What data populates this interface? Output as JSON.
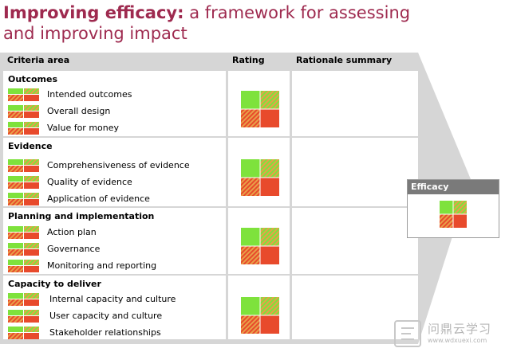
{
  "title": {
    "bold": "Improving efficacy:",
    "rest": " a framework for assessing",
    "line2": "and improving impact"
  },
  "columns": {
    "criteria": "Criteria area",
    "rating": "Rating",
    "rationale": "Rationale summary"
  },
  "groups": [
    {
      "title": "Outcomes",
      "items": [
        "Intended outcomes",
        "Overall design",
        "Value for money"
      ]
    },
    {
      "title": "Evidence",
      "items": [
        "Comprehensiveness of evidence",
        "Quality of evidence",
        "Application of evidence"
      ]
    },
    {
      "title": "Planning and implementation",
      "items": [
        "Action plan",
        "Governance",
        "Monitoring and reporting"
      ]
    },
    {
      "title": "Capacity to deliver",
      "items": [
        "Internal capacity and culture",
        "User capacity and culture",
        "Stakeholder relationships"
      ]
    }
  ],
  "efficacy": {
    "label": "Efficacy"
  },
  "watermark": {
    "text": "问鼎云学习",
    "url": "www.wdxuexi.com"
  },
  "colors": {
    "green": "#7ee23c",
    "amber": "#e8a048",
    "red": "#e84a2c",
    "title": "#9e2a4f"
  }
}
